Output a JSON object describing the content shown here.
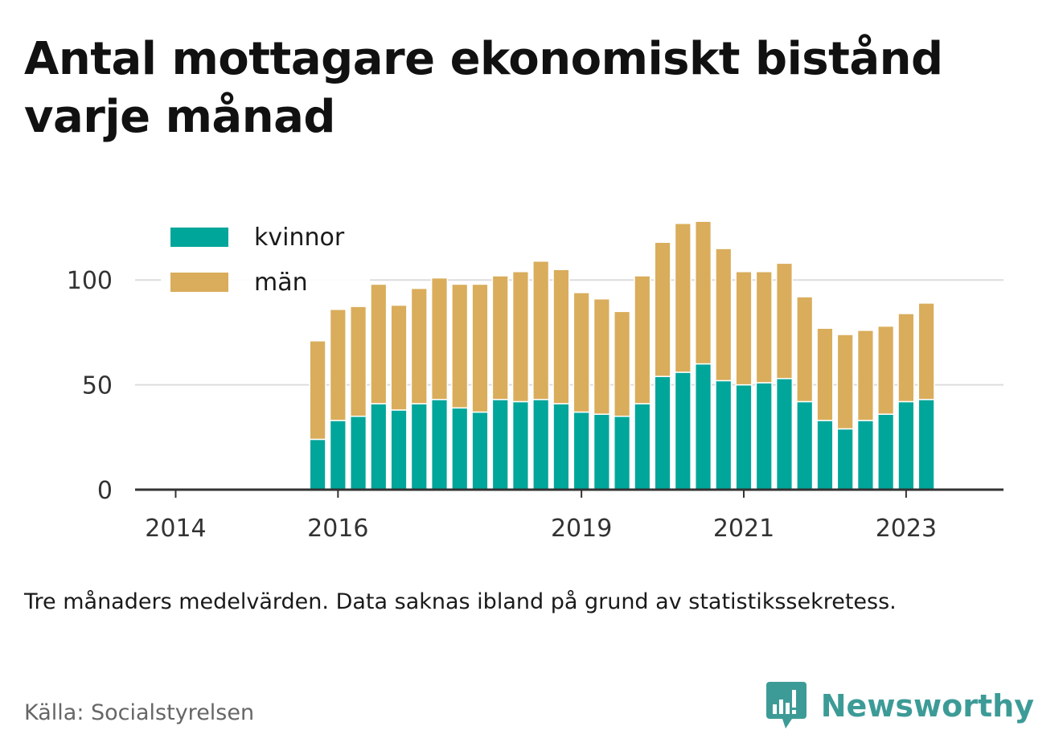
{
  "title": "Antal mottagare ekonomiskt bistånd varje månad",
  "note": "Tre månaders medelvärden. Data saknas ibland på grund av statistikssekretess.",
  "source": "Källa: Socialstyrelsen",
  "brand": "Newsworthy",
  "colors": {
    "kvinnor": "#00a69a",
    "man": "#d9ad5b",
    "grid": "#dddddd",
    "axis": "#333333",
    "brand": "#3d9b97"
  },
  "chart_data": {
    "type": "bar",
    "stacked": true,
    "x_unit": "quarter",
    "x": [
      "2015-Q4",
      "2016-Q1",
      "2016-Q2",
      "2016-Q3",
      "2016-Q4",
      "2017-Q1",
      "2017-Q2",
      "2017-Q3",
      "2017-Q4",
      "2018-Q1",
      "2018-Q2",
      "2018-Q3",
      "2018-Q4",
      "2019-Q1",
      "2019-Q2",
      "2019-Q3",
      "2019-Q4",
      "2020-Q1",
      "2020-Q2",
      "2020-Q3",
      "2020-Q4",
      "2021-Q1",
      "2021-Q2",
      "2021-Q3",
      "2021-Q4",
      "2022-Q1",
      "2022-Q2",
      "2022-Q3",
      "2022-Q4",
      "2023-Q1",
      "2023-Q2"
    ],
    "series": [
      {
        "name": "kvinnor",
        "values": [
          24,
          33,
          35,
          41,
          38,
          41,
          43,
          39,
          37,
          43,
          42,
          43,
          41,
          37,
          36,
          35,
          41,
          54,
          56,
          60,
          52,
          50,
          51,
          53,
          42,
          33,
          29,
          33,
          36,
          42,
          43
        ]
      },
      {
        "name": "män",
        "values": [
          47,
          53,
          53,
          57,
          50,
          55,
          58,
          59,
          61,
          59,
          62,
          66,
          64,
          57,
          55,
          50,
          61,
          64,
          71,
          68,
          63,
          54,
          53,
          55,
          50,
          44,
          45,
          43,
          42,
          42,
          46
        ]
      }
    ],
    "x_ticks": [
      "2014",
      "2016",
      "2019",
      "2021",
      "2023"
    ],
    "x_tick_positions": [
      2014.0,
      2016.0,
      2019.0,
      2021.0,
      2023.0
    ],
    "y_ticks": [
      0,
      50,
      100
    ],
    "ylim": [
      0,
      130
    ],
    "xlim": [
      2013.5,
      2024.2
    ],
    "grid": true,
    "legend": {
      "placement": "top-left",
      "entries": [
        "kvinnor",
        "män"
      ]
    }
  }
}
